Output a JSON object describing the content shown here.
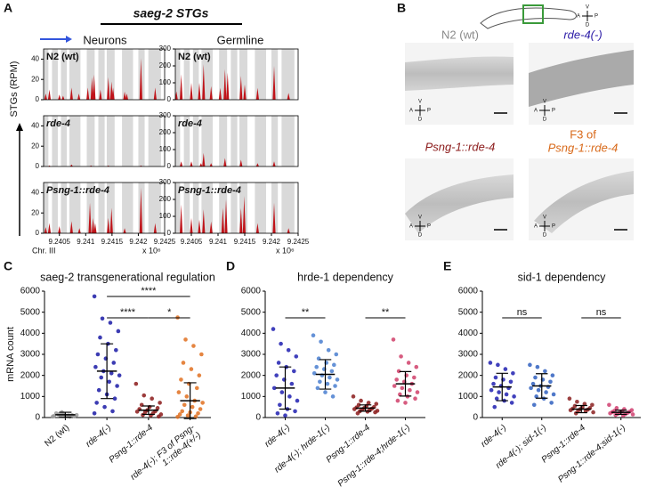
{
  "panels": {
    "a": "A",
    "b": "B",
    "c": "C",
    "d": "D",
    "e": "E"
  },
  "panel_a": {
    "title": "saeg-2 STGs",
    "columns": [
      "Neurons",
      "Germline"
    ],
    "y_label": "STGs (RPM)",
    "x_label": "Chr. III",
    "x_scale": "x 10⁶"
  },
  "panel_b": {
    "labels": [
      "N2 (wt)",
      "rde-4(-)",
      "Psng-1::rde-4",
      "F3 of",
      "Psng-1::rde-4"
    ],
    "compass": [
      "A",
      "P",
      "D",
      "V"
    ]
  },
  "chart_data": [
    {
      "type": "spike",
      "title": "N2 (wt)",
      "color": "#c0141a",
      "xlim": [
        9.2402,
        9.2425
      ],
      "ylim": [
        0,
        50
      ],
      "yticks": [
        0,
        20,
        40
      ],
      "bands": [
        [
          9.24019,
          9.24029
        ],
        [
          9.24036,
          9.24047
        ],
        [
          9.24053,
          9.24064
        ],
        [
          9.24069,
          9.2409
        ],
        [
          9.24102,
          9.24117
        ],
        [
          9.24124,
          9.24136
        ],
        [
          9.2414,
          9.24155
        ],
        [
          9.24169,
          9.2419
        ],
        [
          9.242,
          9.24212
        ],
        [
          9.24219,
          9.24243
        ]
      ],
      "x": [
        9.24024,
        9.24031,
        9.2405,
        9.24057,
        9.24073,
        9.24087,
        9.24104,
        9.24112,
        9.24116,
        9.24128,
        9.24143,
        9.24149,
        9.24152,
        9.24174,
        9.24178,
        9.24205,
        9.24232
      ],
      "values": [
        6,
        10,
        5,
        4,
        12,
        6,
        12,
        22,
        25,
        10,
        22,
        18,
        12,
        8,
        6,
        41,
        12
      ]
    },
    {
      "type": "spike",
      "title": "N2 (wt)",
      "color": "#c0141a",
      "xlim": [
        9.2402,
        9.2425
      ],
      "ylim": [
        0,
        300
      ],
      "yticks": [
        0,
        100,
        200,
        300
      ],
      "bands": [
        [
          9.24019,
          9.24029
        ],
        [
          9.24036,
          9.24047
        ],
        [
          9.24053,
          9.24064
        ],
        [
          9.24069,
          9.2409
        ],
        [
          9.24102,
          9.24117
        ],
        [
          9.24124,
          9.24136
        ],
        [
          9.2414,
          9.24155
        ],
        [
          9.24169,
          9.2419
        ],
        [
          9.242,
          9.24212
        ],
        [
          9.24219,
          9.24243
        ]
      ],
      "x": [
        9.24022,
        9.24031,
        9.2405,
        9.24065,
        9.24073,
        9.24087,
        9.24104,
        9.24113,
        9.24118,
        9.24143,
        9.2415,
        9.24174,
        9.24205,
        9.24232
      ],
      "values": [
        50,
        150,
        100,
        100,
        210,
        80,
        70,
        180,
        160,
        140,
        90,
        70,
        200,
        40
      ]
    },
    {
      "type": "spike",
      "title": "rde-4",
      "color": "#c0141a",
      "xlim": [
        9.2402,
        9.2425
      ],
      "ylim": [
        0,
        50
      ],
      "yticks": [
        0,
        20,
        40
      ],
      "bands": [
        [
          9.24019,
          9.24029
        ],
        [
          9.24036,
          9.24047
        ],
        [
          9.24053,
          9.24064
        ],
        [
          9.24069,
          9.2409
        ],
        [
          9.24102,
          9.24117
        ],
        [
          9.24124,
          9.24136
        ],
        [
          9.2414,
          9.24155
        ],
        [
          9.24169,
          9.2419
        ],
        [
          9.242,
          9.24212
        ],
        [
          9.24219,
          9.24243
        ]
      ],
      "x": [
        9.24031,
        9.24073,
        9.2411,
        9.24143,
        9.24205
      ],
      "values": [
        1,
        2,
        1,
        1,
        1
      ]
    },
    {
      "type": "spike",
      "title": "rde-4",
      "color": "#c0141a",
      "xlim": [
        9.2402,
        9.2425
      ],
      "ylim": [
        0,
        300
      ],
      "yticks": [
        0,
        100,
        200,
        300
      ],
      "bands": [
        [
          9.24019,
          9.24029
        ],
        [
          9.24036,
          9.24047
        ],
        [
          9.24053,
          9.24064
        ],
        [
          9.24069,
          9.2409
        ],
        [
          9.24102,
          9.24117
        ],
        [
          9.24124,
          9.24136
        ],
        [
          9.2414,
          9.24155
        ],
        [
          9.24169,
          9.2419
        ],
        [
          9.242,
          9.24212
        ],
        [
          9.24219,
          9.24243
        ]
      ],
      "x": [
        9.24031,
        9.2405,
        9.24068,
        9.24073,
        9.24087,
        9.24113,
        9.24143,
        9.24174,
        9.24205
      ],
      "values": [
        30,
        30,
        20,
        80,
        20,
        50,
        40,
        20,
        30
      ]
    },
    {
      "type": "spike",
      "title": "Psng-1::rde-4",
      "color": "#c0141a",
      "xlim": [
        9.2402,
        9.2425
      ],
      "ylim": [
        0,
        50
      ],
      "yticks": [
        0,
        20,
        40
      ],
      "xticks": [
        9.2405,
        9.241,
        9.2415,
        9.242,
        9.2425
      ],
      "bands": [
        [
          9.24019,
          9.24029
        ],
        [
          9.24036,
          9.24047
        ],
        [
          9.24053,
          9.24064
        ],
        [
          9.24069,
          9.2409
        ],
        [
          9.24102,
          9.24117
        ],
        [
          9.24124,
          9.24136
        ],
        [
          9.2414,
          9.24155
        ],
        [
          9.24169,
          9.2419
        ],
        [
          9.242,
          9.24212
        ],
        [
          9.24219,
          9.24243
        ]
      ],
      "x": [
        9.24024,
        9.24031,
        9.2405,
        9.24073,
        9.24088,
        9.24108,
        9.24114,
        9.24118,
        9.24143,
        9.24149,
        9.24174,
        9.24205,
        9.24232
      ],
      "values": [
        6,
        10,
        7,
        12,
        5,
        30,
        15,
        10,
        15,
        25,
        5,
        45,
        10
      ]
    },
    {
      "type": "spike",
      "title": "Psng-1::rde-4",
      "color": "#c0141a",
      "xlim": [
        9.2402,
        9.2425
      ],
      "ylim": [
        0,
        300
      ],
      "yticks": [
        0,
        100,
        200,
        300
      ],
      "xticks": [
        9.2405,
        9.241,
        9.2415,
        9.242,
        9.2425
      ],
      "bands": [
        [
          9.24019,
          9.24029
        ],
        [
          9.24036,
          9.24047
        ],
        [
          9.24053,
          9.24064
        ],
        [
          9.24069,
          9.2409
        ],
        [
          9.24102,
          9.24117
        ],
        [
          9.24124,
          9.24136
        ],
        [
          9.2414,
          9.24155
        ],
        [
          9.24169,
          9.2419
        ],
        [
          9.242,
          9.24212
        ],
        [
          9.24219,
          9.24243
        ]
      ],
      "x": [
        9.24031,
        9.2405,
        9.24065,
        9.24073,
        9.24087,
        9.24109,
        9.24115,
        9.24143,
        9.24149,
        9.24174,
        9.24205,
        9.24232
      ],
      "values": [
        170,
        90,
        80,
        140,
        70,
        150,
        200,
        150,
        220,
        60,
        180,
        30
      ]
    },
    {
      "type": "dotplot",
      "title": "saeg-2 transgenerational regulation",
      "y_label": "mRNA count",
      "ylim": [
        0,
        6000
      ],
      "yticks": [
        0,
        1000,
        2000,
        3000,
        4000,
        5000,
        6000
      ],
      "categories": [
        "N2 (wt)",
        "rde-4(-)",
        "Psng-1::rde-4",
        "rde-4(-); F3 of Psng-1::rde-4(+/-)"
      ],
      "colors": [
        "#9a9a9a",
        "#1a1aa6",
        "#8b1a1a",
        "#e07020"
      ],
      "values": [
        [
          50,
          80,
          100,
          120,
          150,
          90,
          60,
          200,
          130,
          110,
          70,
          250,
          40
        ],
        [
          5750,
          4700,
          4500,
          4100,
          3800,
          3500,
          3200,
          3000,
          2800,
          2600,
          2400,
          2200,
          2100,
          2000,
          1900,
          1700,
          1500,
          1300,
          1100,
          900,
          700,
          500,
          300,
          200
        ],
        [
          1600,
          1050,
          900,
          700,
          600,
          500,
          450,
          400,
          350,
          300,
          280,
          250,
          200,
          150,
          120,
          100,
          50
        ],
        [
          4750,
          3700,
          3400,
          3000,
          2600,
          2300,
          2000,
          1800,
          1600,
          1400,
          1200,
          1000,
          800,
          700,
          600,
          500,
          400,
          300,
          250,
          200,
          150,
          100,
          50,
          30
        ]
      ],
      "means": [
        130,
        2200,
        350,
        800
      ],
      "sds": [
        120,
        1300,
        200,
        850
      ],
      "brackets": [
        {
          "label": "****",
          "between": [
            "rde-4(-)",
            "Psng-1::rde-4"
          ]
        },
        {
          "label": "*",
          "between": [
            "Psng-1::rde-4",
            "rde-4(-); F3 of Psng-1::rde-4(+/-)"
          ]
        },
        {
          "label": "****",
          "between": [
            "rde-4(-)",
            "rde-4(-); F3 of Psng-1::rde-4(+/-)"
          ]
        }
      ]
    },
    {
      "type": "dotplot",
      "title": "hrde-1 dependency",
      "ylim": [
        0,
        6000
      ],
      "yticks": [
        0,
        1000,
        2000,
        3000,
        4000,
        5000,
        6000
      ],
      "categories": [
        "rde-4(-)",
        "rde-4(-); hrde-1(-)",
        "Psng-1::rde-4",
        "Psng-1::rde-4;hrde-1(-)"
      ],
      "colors": [
        "#1e1eb0",
        "#4a7fd0",
        "#8b1a1a",
        "#d0406a"
      ],
      "values": [
        [
          4200,
          3500,
          3200,
          2900,
          2600,
          2400,
          2200,
          2000,
          1800,
          1600,
          1400,
          1200,
          1000,
          800,
          600,
          400,
          300,
          200,
          100
        ],
        [
          3900,
          3600,
          3200,
          3000,
          2800,
          2600,
          2500,
          2400,
          2300,
          2200,
          2100,
          2000,
          1900,
          1800,
          1700,
          1600,
          1500,
          1400,
          1200,
          1000
        ],
        [
          1000,
          800,
          700,
          650,
          600,
          550,
          500,
          480,
          450,
          420,
          400,
          380,
          350,
          320,
          300,
          280,
          250,
          200
        ],
        [
          3700,
          2900,
          2600,
          2400,
          2200,
          2000,
          1900,
          1800,
          1700,
          1600,
          1500,
          1400,
          1300,
          1200,
          1100,
          1000,
          900,
          800,
          700
        ]
      ],
      "means": [
        1400,
        2050,
        450,
        1600
      ],
      "sds": [
        1000,
        700,
        150,
        580
      ],
      "brackets": [
        {
          "label": "**",
          "between": [
            "rde-4(-)",
            "rde-4(-); hrde-1(-)"
          ]
        },
        {
          "label": "**",
          "between": [
            "Psng-1::rde-4",
            "Psng-1::rde-4;hrde-1(-)"
          ]
        }
      ]
    },
    {
      "type": "dotplot",
      "title": "sid-1 dependency",
      "ylim": [
        0,
        6000
      ],
      "yticks": [
        0,
        1000,
        2000,
        3000,
        4000,
        5000,
        6000
      ],
      "categories": [
        "rde-4(-)",
        "rde-4(-); sid-1(-)",
        "Psng-1::rde-4",
        "Psng-1::rde-4;sid-1(-)"
      ],
      "colors": [
        "#2020b0",
        "#3060c0",
        "#8b2020",
        "#d04070"
      ],
      "values": [
        [
          2600,
          2500,
          2300,
          2100,
          1900,
          1800,
          1700,
          1600,
          1500,
          1400,
          1300,
          1200,
          1100,
          1000,
          900,
          800,
          700,
          500
        ],
        [
          2500,
          2400,
          2200,
          2000,
          1900,
          1800,
          1700,
          1600,
          1500,
          1450,
          1400,
          1300,
          1200,
          1100,
          1000,
          900,
          700,
          600
        ],
        [
          900,
          750,
          650,
          600,
          550,
          500,
          450,
          420,
          400,
          380,
          350,
          320,
          300,
          250,
          200
        ],
        [
          600,
          450,
          400,
          350,
          320,
          300,
          280,
          260,
          240,
          220,
          200,
          180,
          160,
          150,
          120,
          100
        ]
      ],
      "means": [
        1450,
        1500,
        400,
        250
      ],
      "sds": [
        650,
        580,
        170,
        100
      ],
      "brackets": [
        {
          "label": "ns",
          "between": [
            "rde-4(-)",
            "rde-4(-); sid-1(-)"
          ]
        },
        {
          "label": "ns",
          "between": [
            "Psng-1::rde-4",
            "Psng-1::rde-4;sid-1(-)"
          ]
        }
      ]
    }
  ]
}
